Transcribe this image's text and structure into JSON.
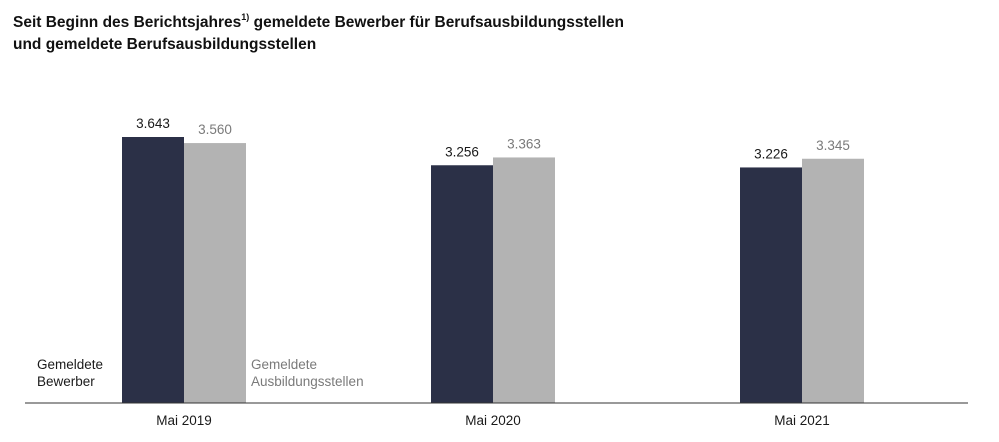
{
  "title": {
    "line1_pre": "Seit Beginn des Berichtsjahres",
    "footnote_marker": "1)",
    "line1_post": " gemeldete Bewerber für Berufsausbildungsstellen",
    "line2": "und gemeldete Berufsausbildungsstellen"
  },
  "colors": {
    "bewerber": "#2b3047",
    "stellen": "#b3b3b3",
    "bewerber_label": "#1a1a1a",
    "stellen_label": "#7a7a7a"
  },
  "chart_data": {
    "type": "bar",
    "categories": [
      "Mai 2019",
      "Mai 2020",
      "Mai 2021"
    ],
    "series": [
      {
        "name": "Gemeldete Bewerber",
        "label_lines": [
          "Gemeldete",
          "Bewerber"
        ],
        "values": [
          3643,
          3256,
          3226
        ],
        "value_labels": [
          "3.643",
          "3.256",
          "3.226"
        ]
      },
      {
        "name": "Gemeldete Ausbildungsstellen",
        "label_lines": [
          "Gemeldete",
          "Ausbildungsstellen"
        ],
        "values": [
          3560,
          3363,
          3345
        ],
        "value_labels": [
          "3.560",
          "3.363",
          "3.345"
        ]
      }
    ],
    "ylim": [
      0,
      4000
    ],
    "grid": false,
    "legend": "inside-first-group"
  }
}
